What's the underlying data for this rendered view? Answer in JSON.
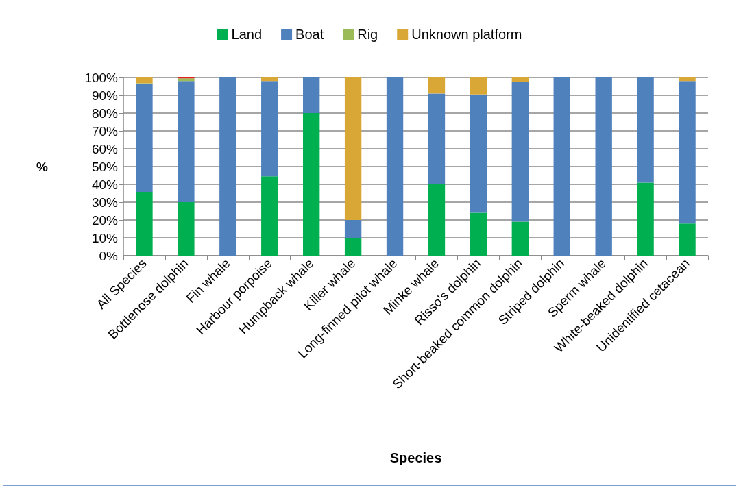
{
  "chart_data": {
    "type": "bar",
    "stacked": true,
    "xlabel": "Species",
    "ylabel": "%",
    "categories": [
      "All Species",
      "Bottlenose dolphin",
      "Fin whale",
      "Harbour porpoise",
      "Humpback whale",
      "Killer whale",
      "Long-finned pilot whale",
      "Minke whale",
      "Risso's dolphin",
      "Short-beaked common dolphin",
      "Striped dolphin",
      "Sperm whale",
      "White-beaked dolphin",
      "Unidentified cetacean"
    ],
    "series": [
      {
        "name": "Land",
        "color": "#00b050",
        "values": [
          35.8,
          30,
          0,
          44.5,
          80,
          10,
          0,
          40,
          24,
          19,
          0,
          0,
          41,
          18
        ]
      },
      {
        "name": "Boat",
        "color": "#4f81bd",
        "values": [
          60.5,
          68,
          100,
          53.5,
          20,
          10,
          100,
          51,
          66.5,
          78.5,
          100,
          100,
          59,
          80
        ]
      },
      {
        "name": "Rig",
        "color": "#9bbb59",
        "values": [
          0.5,
          1.5,
          0,
          0,
          0,
          0,
          0,
          0,
          0,
          0,
          0,
          0,
          0,
          0
        ]
      },
      {
        "name": "Unknown platform",
        "color": "#d9a735",
        "values": [
          3.2,
          0,
          0,
          2,
          0,
          80,
          0,
          9,
          9.5,
          2.5,
          0,
          0,
          0,
          2
        ]
      },
      {
        "color": "#e02020",
        "values": [
          0,
          0.5,
          0,
          0,
          0,
          0,
          0,
          0,
          0,
          0,
          0,
          0,
          0,
          0
        ]
      }
    ],
    "ylim": [
      0,
      100
    ],
    "yticks": [
      {
        "value": 0,
        "label": "0%"
      },
      {
        "value": 10,
        "label": "10%"
      },
      {
        "value": 20,
        "label": "20%"
      },
      {
        "value": 30,
        "label": "30%"
      },
      {
        "value": 40,
        "label": "40%"
      },
      {
        "value": 50,
        "label": "50%"
      },
      {
        "value": 60,
        "label": "60%"
      },
      {
        "value": 70,
        "label": "70%"
      },
      {
        "value": 80,
        "label": "80%"
      },
      {
        "value": 90,
        "label": "90%"
      },
      {
        "value": 100,
        "label": "100%"
      }
    ],
    "grid": "y",
    "legend": "top"
  }
}
